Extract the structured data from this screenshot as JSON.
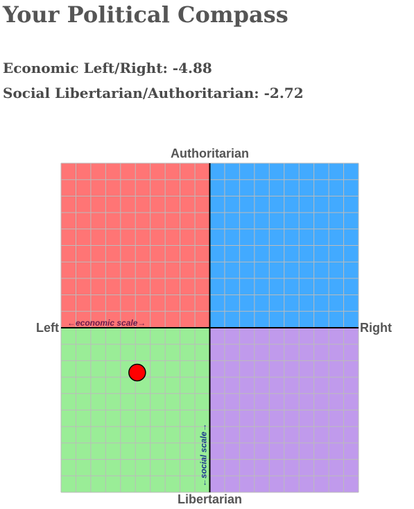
{
  "page": {
    "title": "Your Political Compass",
    "economic_line": "Economic Left/Right: -4.88",
    "social_line": "Social Libertarian/Authoritarian: -2.72"
  },
  "chart_data": {
    "type": "scatter",
    "axis_labels": {
      "top": "Authoritarian",
      "bottom": "Libertarian",
      "left": "Left",
      "right": "Right"
    },
    "economic_scale_label": "←economic scale→",
    "social_scale_label": "←social scale→",
    "xlim": [
      -10,
      10
    ],
    "ylim": [
      -10,
      10
    ],
    "grid": true,
    "grid_divisions": 20,
    "quadrant_colors": {
      "authoritarian_left": "#ff7575",
      "authoritarian_right": "#42aaff",
      "libertarian_left": "#9aed97",
      "libertarian_right": "#c09aec"
    },
    "grid_color": "#bbbbbb",
    "axis_color": "#000000",
    "point": {
      "x": -4.88,
      "y": -2.72,
      "color": "#ff0000"
    }
  }
}
